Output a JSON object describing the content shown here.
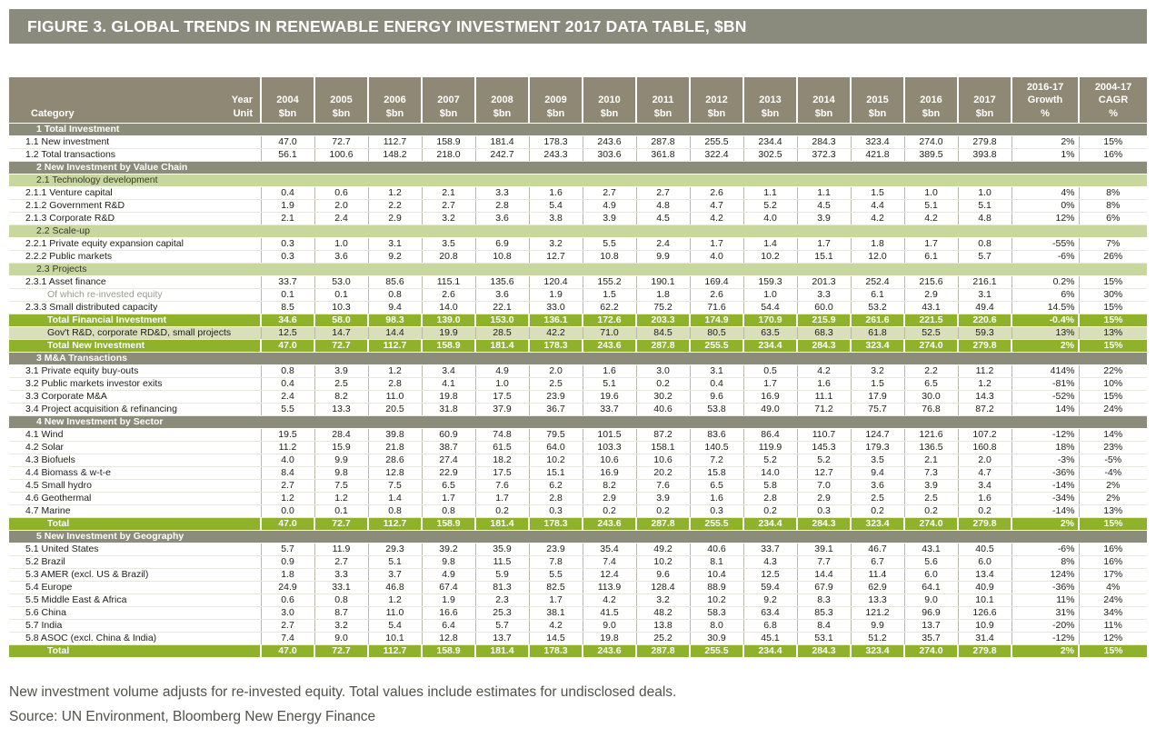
{
  "title": "FIGURE 3. GLOBAL TRENDS IN RENEWABLE ENERGY INVESTMENT 2017 DATA TABLE, $BN",
  "footnote": "New investment volume adjusts for re-invested equity. Total values include estimates for undisclosed deals.",
  "source": "Source: UN Environment, Bloomberg New Energy Finance",
  "colors": {
    "title_bar": "#8a8b7d",
    "table_header": "#8e8874",
    "section_band": "#8c8c7b",
    "subsection_band": "#c8d79e",
    "total_row_green": "#8fb22b",
    "highlight_row": "#d9dfba"
  },
  "chart_data": {
    "type": "table",
    "header": {
      "category": "Category",
      "year": "Year",
      "unit": "Unit",
      "years": [
        "2004",
        "2005",
        "2006",
        "2007",
        "2008",
        "2009",
        "2010",
        "2011",
        "2012",
        "2013",
        "2014",
        "2015",
        "2016",
        "2017"
      ],
      "unit_value": "$bn",
      "growth_label": [
        "2016-17",
        "Growth",
        "%"
      ],
      "cagr_label": [
        "2004-17",
        "CAGR",
        "%"
      ]
    },
    "rows": [
      {
        "type": "section",
        "label": "1 Total Investment"
      },
      {
        "type": "data",
        "label": "1.1 New investment",
        "values": [
          "47.0",
          "72.7",
          "112.7",
          "158.9",
          "181.4",
          "178.3",
          "243.6",
          "287.8",
          "255.5",
          "234.4",
          "284.3",
          "323.4",
          "274.0",
          "279.8"
        ],
        "growth": "2%",
        "cagr": "15%"
      },
      {
        "type": "data",
        "label": "1.2 Total transactions",
        "values": [
          "56.1",
          "100.6",
          "148.2",
          "218.0",
          "242.7",
          "243.3",
          "303.6",
          "361.8",
          "322.4",
          "302.5",
          "372.3",
          "421.8",
          "389.5",
          "393.8"
        ],
        "growth": "1%",
        "cagr": "16%"
      },
      {
        "type": "section",
        "label": "2 New Investment by Value Chain"
      },
      {
        "type": "subsection",
        "label": "2.1 Technology development"
      },
      {
        "type": "data",
        "label": "2.1.1 Venture capital",
        "values": [
          "0.4",
          "0.6",
          "1.2",
          "2.1",
          "3.3",
          "1.6",
          "2.7",
          "2.7",
          "2.6",
          "1.1",
          "1.1",
          "1.5",
          "1.0",
          "1.0"
        ],
        "growth": "4%",
        "cagr": "8%"
      },
      {
        "type": "data",
        "label": "2.1.2 Government R&D",
        "values": [
          "1.9",
          "2.0",
          "2.2",
          "2.7",
          "2.8",
          "5.4",
          "4.9",
          "4.8",
          "4.7",
          "5.2",
          "4.5",
          "4.4",
          "5.1",
          "5.1"
        ],
        "growth": "0%",
        "cagr": "8%"
      },
      {
        "type": "data",
        "label": "2.1.3 Corporate R&D",
        "values": [
          "2.1",
          "2.4",
          "2.9",
          "3.2",
          "3.6",
          "3.8",
          "3.9",
          "4.5",
          "4.2",
          "4.0",
          "3.9",
          "4.2",
          "4.2",
          "4.8"
        ],
        "growth": "12%",
        "cagr": "6%"
      },
      {
        "type": "subsection",
        "label": "2.2 Scale-up"
      },
      {
        "type": "data",
        "label": "2.2.1 Private equity expansion capital",
        "values": [
          "0.3",
          "1.0",
          "3.1",
          "3.5",
          "6.9",
          "3.2",
          "5.5",
          "2.4",
          "1.7",
          "1.4",
          "1.7",
          "1.8",
          "1.7",
          "0.8"
        ],
        "growth": "-55%",
        "cagr": "7%"
      },
      {
        "type": "data",
        "label": "2.2.2 Public markets",
        "values": [
          "0.3",
          "3.6",
          "9.2",
          "20.8",
          "10.8",
          "12.7",
          "10.8",
          "9.9",
          "4.0",
          "10.2",
          "15.1",
          "12.0",
          "6.1",
          "5.7"
        ],
        "growth": "-6%",
        "cagr": "26%"
      },
      {
        "type": "subsection",
        "label": "2.3 Projects"
      },
      {
        "type": "data",
        "label": "2.3.1 Asset finance",
        "values": [
          "33.7",
          "53.0",
          "85.6",
          "115.1",
          "135.6",
          "120.4",
          "155.2",
          "190.1",
          "169.4",
          "159.3",
          "201.3",
          "252.4",
          "215.6",
          "216.1"
        ],
        "growth": "0.2%",
        "cagr": "15%"
      },
      {
        "type": "muted",
        "label": "Of which re-invested equity",
        "values": [
          "0.1",
          "0.1",
          "0.8",
          "2.6",
          "3.6",
          "1.9",
          "1.5",
          "1.8",
          "2.6",
          "1.0",
          "3.3",
          "6.1",
          "2.9",
          "3.1"
        ],
        "growth": "6%",
        "cagr": "30%"
      },
      {
        "type": "data",
        "label": "2.3.3 Small distributed capacity",
        "values": [
          "8.5",
          "10.3",
          "9.4",
          "14.0",
          "22.1",
          "33.0",
          "62.2",
          "75.2",
          "71.6",
          "54.4",
          "60.0",
          "53.2",
          "43.1",
          "49.4"
        ],
        "growth": "14.5%",
        "cagr": "15%"
      },
      {
        "type": "total",
        "label": "Total Financial Investment",
        "values": [
          "34.6",
          "58.0",
          "98.3",
          "139.0",
          "153.0",
          "136.1",
          "172.6",
          "203.3",
          "174.9",
          "170.9",
          "215.9",
          "261.6",
          "221.5",
          "220.6"
        ],
        "growth": "-0.4%",
        "cagr": "15%"
      },
      {
        "type": "highlight",
        "label": "Gov't R&D, corporate RD&D, small projects",
        "values": [
          "12.5",
          "14.7",
          "14.4",
          "19.9",
          "28.5",
          "42.2",
          "71.0",
          "84.5",
          "80.5",
          "63.5",
          "68.3",
          "61.8",
          "52.5",
          "59.3"
        ],
        "growth": "13%",
        "cagr": "13%"
      },
      {
        "type": "total",
        "label": "Total New Investment",
        "values": [
          "47.0",
          "72.7",
          "112.7",
          "158.9",
          "181.4",
          "178.3",
          "243.6",
          "287.8",
          "255.5",
          "234.4",
          "284.3",
          "323.4",
          "274.0",
          "279.8"
        ],
        "growth": "2%",
        "cagr": "15%"
      },
      {
        "type": "section",
        "label": "3 M&A Transactions"
      },
      {
        "type": "data",
        "label": "3.1 Private equity buy-outs",
        "values": [
          "0.8",
          "3.9",
          "1.2",
          "3.4",
          "4.9",
          "2.0",
          "1.6",
          "3.0",
          "3.1",
          "0.5",
          "4.2",
          "3.2",
          "2.2",
          "11.2"
        ],
        "growth": "414%",
        "cagr": "22%"
      },
      {
        "type": "data",
        "label": "3.2 Public markets investor exits",
        "values": [
          "0.4",
          "2.5",
          "2.8",
          "4.1",
          "1.0",
          "2.5",
          "5.1",
          "0.2",
          "0.4",
          "1.7",
          "1.6",
          "1.5",
          "6.5",
          "1.2"
        ],
        "growth": "-81%",
        "cagr": "10%"
      },
      {
        "type": "data",
        "label": "3.3 Corporate M&A",
        "values": [
          "2.4",
          "8.2",
          "11.0",
          "19.8",
          "17.5",
          "23.9",
          "19.6",
          "30.2",
          "9.6",
          "16.9",
          "11.1",
          "17.9",
          "30.0",
          "14.3"
        ],
        "growth": "-52%",
        "cagr": "15%"
      },
      {
        "type": "data",
        "label": "3.4 Project acquisition & refinancing",
        "values": [
          "5.5",
          "13.3",
          "20.5",
          "31.8",
          "37.9",
          "36.7",
          "33.7",
          "40.6",
          "53.8",
          "49.0",
          "71.2",
          "75.7",
          "76.8",
          "87.2"
        ],
        "growth": "14%",
        "cagr": "24%"
      },
      {
        "type": "section",
        "label": "4 New Investment by Sector"
      },
      {
        "type": "data",
        "label": "4.1 Wind",
        "values": [
          "19.5",
          "28.4",
          "39.8",
          "60.9",
          "74.8",
          "79.5",
          "101.5",
          "87.2",
          "83.6",
          "86.4",
          "110.7",
          "124.7",
          "121.6",
          "107.2"
        ],
        "growth": "-12%",
        "cagr": "14%"
      },
      {
        "type": "data",
        "label": "4.2 Solar",
        "values": [
          "11.2",
          "15.9",
          "21.8",
          "38.7",
          "61.5",
          "64.0",
          "103.3",
          "158.1",
          "140.5",
          "119.9",
          "145.3",
          "179.3",
          "136.5",
          "160.8"
        ],
        "growth": "18%",
        "cagr": "23%"
      },
      {
        "type": "data",
        "label": "4.3 Biofuels",
        "values": [
          "4.0",
          "9.9",
          "28.6",
          "27.4",
          "18.2",
          "10.2",
          "10.6",
          "10.6",
          "7.2",
          "5.2",
          "5.2",
          "3.5",
          "2.1",
          "2.0"
        ],
        "growth": "-3%",
        "cagr": "-5%"
      },
      {
        "type": "data",
        "label": "4.4 Biomass & w-t-e",
        "values": [
          "8.4",
          "9.8",
          "12.8",
          "22.9",
          "17.5",
          "15.1",
          "16.9",
          "20.2",
          "15.8",
          "14.0",
          "12.7",
          "9.4",
          "7.3",
          "4.7"
        ],
        "growth": "-36%",
        "cagr": "-4%"
      },
      {
        "type": "data",
        "label": "4.5 Small hydro",
        "values": [
          "2.7",
          "7.5",
          "7.5",
          "6.5",
          "7.6",
          "6.2",
          "8.2",
          "7.6",
          "6.5",
          "5.8",
          "7.0",
          "3.6",
          "3.9",
          "3.4"
        ],
        "growth": "-14%",
        "cagr": "2%"
      },
      {
        "type": "data",
        "label": "4.6 Geothermal",
        "values": [
          "1.2",
          "1.2",
          "1.4",
          "1.7",
          "1.7",
          "2.8",
          "2.9",
          "3.9",
          "1.6",
          "2.8",
          "2.9",
          "2.5",
          "2.5",
          "1.6"
        ],
        "growth": "-34%",
        "cagr": "2%"
      },
      {
        "type": "data",
        "label": "4.7 Marine",
        "values": [
          "0.0",
          "0.1",
          "0.8",
          "0.8",
          "0.2",
          "0.3",
          "0.2",
          "0.2",
          "0.3",
          "0.2",
          "0.3",
          "0.2",
          "0.2",
          "0.2"
        ],
        "growth": "-14%",
        "cagr": "13%"
      },
      {
        "type": "total",
        "label": "Total",
        "values": [
          "47.0",
          "72.7",
          "112.7",
          "158.9",
          "181.4",
          "178.3",
          "243.6",
          "287.8",
          "255.5",
          "234.4",
          "284.3",
          "323.4",
          "274.0",
          "279.8"
        ],
        "growth": "2%",
        "cagr": "15%"
      },
      {
        "type": "section",
        "label": "5 New Investment by Geography"
      },
      {
        "type": "data",
        "label": "5.1 United States",
        "values": [
          "5.7",
          "11.9",
          "29.3",
          "39.2",
          "35.9",
          "23.9",
          "35.4",
          "49.2",
          "40.6",
          "33.7",
          "39.1",
          "46.7",
          "43.1",
          "40.5"
        ],
        "growth": "-6%",
        "cagr": "16%"
      },
      {
        "type": "data",
        "label": "5.2 Brazil",
        "values": [
          "0.9",
          "2.7",
          "5.1",
          "9.8",
          "11.5",
          "7.8",
          "7.4",
          "10.2",
          "8.1",
          "4.3",
          "7.7",
          "6.7",
          "5.6",
          "6.0"
        ],
        "growth": "8%",
        "cagr": "16%"
      },
      {
        "type": "data",
        "label": "5.3 AMER (excl. US & Brazil)",
        "values": [
          "1.8",
          "3.3",
          "3.7",
          "4.9",
          "5.9",
          "5.5",
          "12.4",
          "9.6",
          "10.4",
          "12.5",
          "14.4",
          "11.4",
          "6.0",
          "13.4"
        ],
        "growth": "124%",
        "cagr": "17%"
      },
      {
        "type": "data",
        "label": "5.4 Europe",
        "values": [
          "24.9",
          "33.1",
          "46.8",
          "67.4",
          "81.3",
          "82.5",
          "113.9",
          "128.4",
          "88.9",
          "59.4",
          "67.9",
          "62.9",
          "64.1",
          "40.9"
        ],
        "growth": "-36%",
        "cagr": "4%"
      },
      {
        "type": "data",
        "label": "5.5 Middle East & Africa",
        "values": [
          "0.6",
          "0.8",
          "1.2",
          "1.9",
          "2.3",
          "1.7",
          "4.2",
          "3.2",
          "10.2",
          "9.2",
          "8.3",
          "13.3",
          "9.0",
          "10.1"
        ],
        "growth": "11%",
        "cagr": "24%"
      },
      {
        "type": "data",
        "label": "5.6 China",
        "values": [
          "3.0",
          "8.7",
          "11.0",
          "16.6",
          "25.3",
          "38.1",
          "41.5",
          "48.2",
          "58.3",
          "63.4",
          "85.3",
          "121.2",
          "96.9",
          "126.6"
        ],
        "growth": "31%",
        "cagr": "34%"
      },
      {
        "type": "data",
        "label": "5.7 India",
        "values": [
          "2.7",
          "3.2",
          "5.4",
          "6.4",
          "5.7",
          "4.2",
          "9.0",
          "13.8",
          "8.0",
          "6.8",
          "8.4",
          "9.9",
          "13.7",
          "10.9"
        ],
        "growth": "-20%",
        "cagr": "11%"
      },
      {
        "type": "data",
        "label": "5.8 ASOC (excl. China & India)",
        "values": [
          "7.4",
          "9.0",
          "10.1",
          "12.8",
          "13.7",
          "14.5",
          "19.8",
          "25.2",
          "30.9",
          "45.1",
          "53.1",
          "51.2",
          "35.7",
          "31.4"
        ],
        "growth": "-12%",
        "cagr": "12%"
      },
      {
        "type": "total",
        "label": "Total",
        "values": [
          "47.0",
          "72.7",
          "112.7",
          "158.9",
          "181.4",
          "178.3",
          "243.6",
          "287.8",
          "255.5",
          "234.4",
          "284.3",
          "323.4",
          "274.0",
          "279.8"
        ],
        "growth": "2%",
        "cagr": "15%"
      }
    ]
  }
}
